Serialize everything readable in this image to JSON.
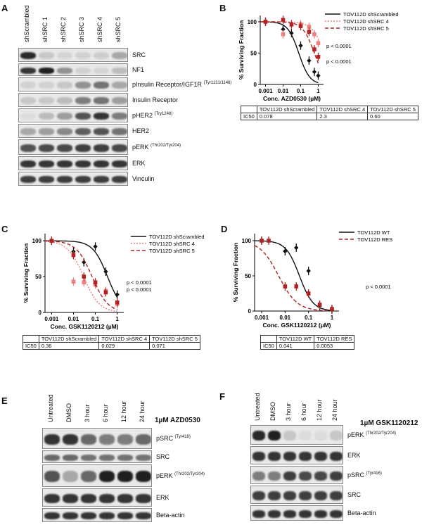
{
  "panels": {
    "A": {
      "letter": "A",
      "lanes": [
        "shScrambled",
        "shSRC 1",
        "shSRC 2",
        "shSRC 3",
        "shSRC 4",
        "shSRC 5"
      ],
      "blots": [
        {
          "label": "SRC",
          "sup": "",
          "bands": [
            0.9,
            0.15,
            0.08,
            0.1,
            0.12,
            0.3
          ]
        },
        {
          "label": "NF1",
          "sup": "",
          "bands": [
            0.85,
            0.95,
            0.4,
            0.1,
            0.08,
            0.2
          ]
        },
        {
          "label": "pInsulin Receptor/IGF1R",
          "sup": "(Tyr1131/1146)",
          "bands": [
            0.1,
            0.1,
            0.15,
            0.4,
            0.55,
            0.3
          ]
        },
        {
          "label": "Insulin Receptor",
          "sup": "",
          "bands": [
            0.15,
            0.15,
            0.2,
            0.5,
            0.55,
            0.35
          ]
        },
        {
          "label": "pHER2",
          "sup": "(Try1248)",
          "bands": [
            0.05,
            0.2,
            0.35,
            0.7,
            0.85,
            0.5
          ]
        },
        {
          "label": "HER2",
          "sup": "",
          "bands": [
            0.3,
            0.35,
            0.45,
            0.65,
            0.7,
            0.55
          ]
        },
        {
          "label": "pERK",
          "sup": "(Thr202/Tyr204)",
          "bands": [
            0.7,
            0.75,
            0.75,
            0.8,
            0.8,
            0.75
          ]
        },
        {
          "label": "ERK",
          "sup": "",
          "bands": [
            0.85,
            0.85,
            0.85,
            0.85,
            0.85,
            0.85
          ]
        },
        {
          "label": "Vinculin",
          "sup": "",
          "bands": [
            0.8,
            0.8,
            0.8,
            0.8,
            0.8,
            0.8
          ]
        }
      ]
    },
    "B": {
      "letter": "B",
      "ylabel": "% Surviving Fraction",
      "xlabel": "Conc. AZD0530 (µM)",
      "xticks": [
        "0.001",
        "0.01",
        "0.1",
        "1"
      ],
      "yticks": [
        "0",
        "50",
        "100"
      ],
      "pvalues": [
        "p < 0.0001",
        "p < 0.0001"
      ],
      "table": {
        "row_label": "IC50",
        "headers": [
          "TOV112D shScrambled",
          "TOV112D shSRC 4",
          "TOV112D shSRC 5"
        ],
        "values": [
          "0.078",
          "2.3",
          "0.60"
        ]
      }
    },
    "C": {
      "letter": "C",
      "ylabel": "% Surviving Fraction",
      "xlabel": "Conc. GSK1120212 (µM)",
      "xticks": [
        "0.001",
        "0.01",
        "0.1",
        "1"
      ],
      "yticks": [
        "0",
        "50",
        "100"
      ],
      "pvalues": [
        "p < 0.0001",
        "p < 0.0001"
      ],
      "table": {
        "row_label": "IC50",
        "headers": [
          "TOV112D shScrambled",
          "TOV112D shSRC 4",
          "TOV112D shSRC 5"
        ],
        "values": [
          "0.36",
          "0.029",
          "0.071"
        ]
      }
    },
    "D": {
      "letter": "D",
      "ylabel": "% Surviving Fraction",
      "xlabel": "Conc. GSK1120212 (µM)",
      "xticks": [
        "0.001",
        "0.01",
        "0.1",
        "1"
      ],
      "yticks": [
        "0",
        "50",
        "100"
      ],
      "pvalues": [
        "p < 0.0001"
      ],
      "table": {
        "row_label": "IC50",
        "headers": [
          "TOV112D WT",
          "TOV112D RES"
        ],
        "values": [
          "0.041",
          "0.0053"
        ]
      }
    },
    "E": {
      "letter": "E",
      "treatment": "1µM AZD0530",
      "lanes": [
        "Untreated",
        "DMSO",
        "3 hour",
        "6 hour",
        "12 hour",
        "24 hour"
      ],
      "blots": [
        {
          "label": "pSRC",
          "sup": "(Tyr416)",
          "bands": [
            0.85,
            0.85,
            0.6,
            0.5,
            0.5,
            0.6
          ]
        },
        {
          "label": "SRC",
          "sup": "",
          "bands": [
            0.6,
            0.6,
            0.55,
            0.55,
            0.55,
            0.55
          ]
        },
        {
          "label": "pERK",
          "sup": "(Thr202/Tyr204)",
          "bands": [
            0.7,
            0.3,
            0.6,
            0.95,
            0.95,
            0.95
          ]
        },
        {
          "label": "ERK",
          "sup": "",
          "bands": [
            0.85,
            0.85,
            0.85,
            0.85,
            0.85,
            0.85
          ]
        },
        {
          "label": "Beta-actin",
          "sup": "",
          "bands": [
            0.85,
            0.85,
            0.85,
            0.85,
            0.85,
            0.85
          ]
        }
      ]
    },
    "F": {
      "letter": "F",
      "treatment": "1µM GSK1120212",
      "lanes": [
        "Untreated",
        "DMSO",
        "3 hour",
        "6 hour",
        "12 hour",
        "24 hour"
      ],
      "blots": [
        {
          "label": "pERK",
          "sup": "(Thr202/Tyr204)",
          "bands": [
            0.9,
            0.95,
            0.15,
            0.05,
            0.05,
            0.15
          ]
        },
        {
          "label": "ERK",
          "sup": "",
          "bands": [
            0.85,
            0.85,
            0.85,
            0.85,
            0.85,
            0.85
          ]
        },
        {
          "label": "pSRC",
          "sup": "(Tyr416)",
          "bands": [
            0.5,
            0.5,
            0.8,
            0.75,
            0.75,
            0.8
          ]
        },
        {
          "label": "SRC",
          "sup": "",
          "bands": [
            0.8,
            0.8,
            0.8,
            0.8,
            0.8,
            0.8
          ]
        },
        {
          "label": "Beta-actin",
          "sup": "",
          "bands": [
            0.85,
            0.85,
            0.85,
            0.85,
            0.85,
            0.85
          ]
        }
      ]
    }
  },
  "chart_data": [
    {
      "type": "line",
      "panel": "B",
      "xlabel": "Conc. AZD0530 (µM)",
      "ylabel": "% Surviving Fraction",
      "xscale": "log",
      "xlim": [
        0.0005,
        2
      ],
      "ylim": [
        0,
        110
      ],
      "legend": "top-right",
      "series": [
        {
          "name": "TOV112D shScrambled",
          "color": "#111111",
          "style": "solid",
          "ic50": 0.078,
          "hill": 1.4,
          "x": [
            0.001,
            0.01,
            0.03,
            0.1,
            0.3,
            0.6,
            1
          ],
          "y": [
            100,
            88,
            82,
            62,
            38,
            20,
            14
          ]
        },
        {
          "name": "TOV112D shSRC 4",
          "color": "#f08080",
          "style": "dotted",
          "ic50": 2.3,
          "hill": 1.2,
          "x": [
            0.001,
            0.01,
            0.03,
            0.1,
            0.3,
            0.6,
            1
          ],
          "y": [
            100,
            80,
            95,
            96,
            92,
            80,
            66
          ]
        },
        {
          "name": "TOV112D shSRC 5",
          "color": "#b22222",
          "style": "dashed",
          "ic50": 0.6,
          "hill": 1.3,
          "x": [
            0.001,
            0.01,
            0.03,
            0.1,
            0.3,
            0.6,
            1
          ],
          "y": [
            100,
            103,
            96,
            93,
            84,
            56,
            44
          ]
        }
      ]
    },
    {
      "type": "line",
      "panel": "C",
      "xlabel": "Conc. GSK1120212 (µM)",
      "ylabel": "% Surviving Fraction",
      "xscale": "log",
      "xlim": [
        0.0005,
        2
      ],
      "ylim": [
        0,
        110
      ],
      "legend": "top-right",
      "series": [
        {
          "name": "TOV112D shScrambled",
          "color": "#111111",
          "style": "solid",
          "ic50": 0.36,
          "hill": 1.3,
          "x": [
            0.001,
            0.01,
            0.03,
            0.1,
            0.3,
            1
          ],
          "y": [
            100,
            85,
            70,
            92,
            57,
            25
          ]
        },
        {
          "name": "TOV112D shSRC 4",
          "color": "#f08080",
          "style": "dotted",
          "ic50": 0.029,
          "hill": 1.2,
          "x": [
            0.001,
            0.01,
            0.03,
            0.1,
            0.3,
            1
          ],
          "y": [
            100,
            43,
            42,
            39,
            30,
            12
          ]
        },
        {
          "name": "TOV112D shSRC 5",
          "color": "#b22222",
          "style": "dashed",
          "ic50": 0.071,
          "hill": 1.2,
          "x": [
            0.001,
            0.01,
            0.03,
            0.1,
            0.3,
            1
          ],
          "y": [
            100,
            80,
            50,
            42,
            28,
            14
          ]
        }
      ]
    },
    {
      "type": "line",
      "panel": "D",
      "xlabel": "Conc. GSK1120212 (µM)",
      "ylabel": "% Surviving Fraction",
      "xscale": "log",
      "xlim": [
        0.0005,
        2
      ],
      "ylim": [
        0,
        110
      ],
      "legend": "top-right",
      "series": [
        {
          "name": "TOV112D WT",
          "color": "#111111",
          "style": "solid",
          "ic50": 0.041,
          "hill": 1.5,
          "x": [
            0.001,
            0.01,
            0.03,
            0.1,
            0.3,
            1
          ],
          "y": [
            100,
            85,
            90,
            57,
            8,
            2
          ]
        },
        {
          "name": "TOV112D RES",
          "color": "#b22222",
          "style": "dashed",
          "ic50": 0.0053,
          "hill": 1.1,
          "x": [
            0.001,
            0.002,
            0.01,
            0.03,
            0.1,
            0.3,
            1
          ],
          "y": [
            100,
            100,
            35,
            35,
            25,
            9,
            3
          ]
        }
      ]
    }
  ]
}
